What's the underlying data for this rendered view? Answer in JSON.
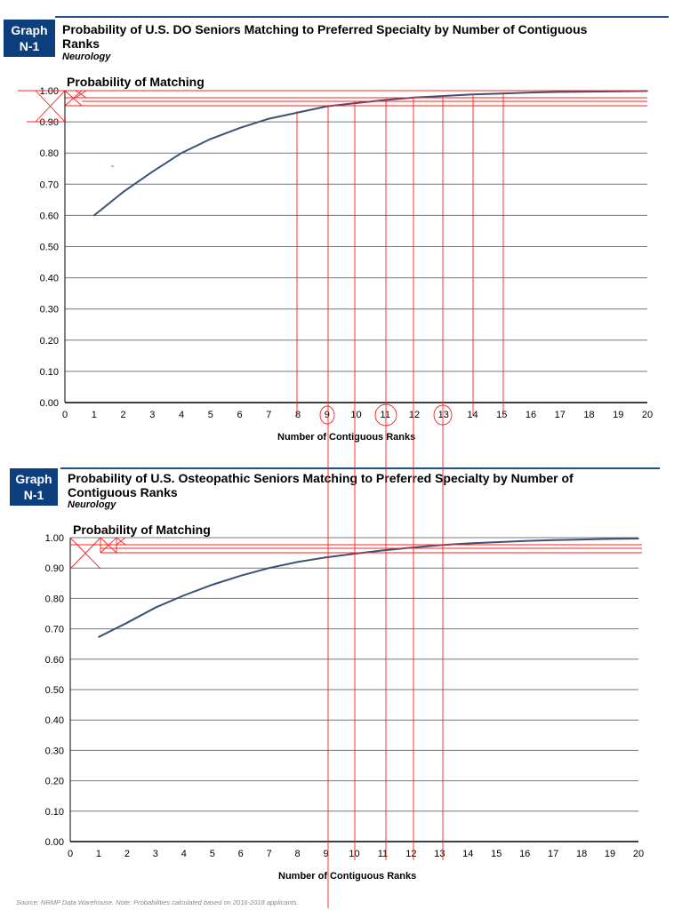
{
  "charts": [
    {
      "badge": [
        "Graph",
        "N-1"
      ],
      "title": "Probability of U.S. DO Seniors Matching to Preferred Specialty by Number of Contiguous Ranks",
      "subtitle": "Neurology",
      "ylabel": "Probability of Matching",
      "xlabel": "Number of Contiguous Ranks"
    },
    {
      "badge": [
        "Graph",
        "N-1"
      ],
      "title": "Probability of U.S. Osteopathic Seniors Matching to Preferred Specialty by Number of Contiguous Ranks",
      "subtitle": "Neurology",
      "ylabel": "Probability of Matching",
      "xlabel": "Number of Contiguous Ranks"
    }
  ],
  "source_note": "Source: NRMP Data Warehouse. Note: Probabilities calculated based on 2016-2018 applicants.",
  "colors": {
    "line": "#3a5274",
    "badge": "#0d3f7e",
    "annotation": "#ff0000"
  },
  "chart_data": [
    {
      "type": "line",
      "title": "Probability of U.S. DO Seniors Matching to Preferred Specialty by Number of Contiguous Ranks",
      "subtitle": "Neurology",
      "xlabel": "Number of Contiguous Ranks",
      "ylabel": "Probability of Matching",
      "xlim": [
        0,
        20
      ],
      "ylim": [
        0,
        1
      ],
      "xticks": [
        "0",
        "1",
        "2",
        "3",
        "4",
        "5",
        "6",
        "7",
        "8",
        "9",
        "10",
        "11",
        "12",
        "13",
        "14",
        "15",
        "16",
        "17",
        "18",
        "19",
        "20"
      ],
      "yticks": [
        "0.00",
        "0.10",
        "0.20",
        "0.30",
        "0.40",
        "0.50",
        "0.60",
        "0.70",
        "0.80",
        "0.90",
        "1.00"
      ],
      "grid": true,
      "x": [
        1,
        2,
        3,
        4,
        5,
        6,
        7,
        8,
        9,
        10,
        11,
        12,
        13,
        14,
        15,
        16,
        17,
        18,
        19,
        20
      ],
      "series": [
        {
          "name": "Probability of Matching",
          "values": [
            0.6,
            0.675,
            0.74,
            0.8,
            0.845,
            0.88,
            0.91,
            0.93,
            0.95,
            0.96,
            0.97,
            0.978,
            0.983,
            0.988,
            0.991,
            0.994,
            0.996,
            0.997,
            0.998,
            0.999
          ]
        }
      ]
    },
    {
      "type": "line",
      "title": "Probability of U.S. Osteopathic Seniors Matching to Preferred Specialty by Number of Contiguous Ranks",
      "subtitle": "Neurology",
      "xlabel": "Number of Contiguous Ranks",
      "ylabel": "Probability of Matching",
      "xlim": [
        0,
        20
      ],
      "ylim": [
        0,
        1
      ],
      "xticks": [
        "0",
        "1",
        "2",
        "3",
        "4",
        "5",
        "6",
        "7",
        "8",
        "9",
        "10",
        "11",
        "12",
        "13",
        "14",
        "15",
        "16",
        "17",
        "18",
        "19",
        "20"
      ],
      "yticks": [
        "0.00",
        "0.10",
        "0.20",
        "0.30",
        "0.40",
        "0.50",
        "0.60",
        "0.70",
        "0.80",
        "0.90",
        "1.00"
      ],
      "grid": true,
      "x": [
        1,
        2,
        3,
        4,
        5,
        6,
        7,
        8,
        9,
        10,
        11,
        12,
        13,
        14,
        15,
        16,
        17,
        18,
        19,
        20
      ],
      "series": [
        {
          "name": "Probability of Matching",
          "values": [
            0.673,
            0.72,
            0.77,
            0.81,
            0.845,
            0.875,
            0.9,
            0.92,
            0.935,
            0.947,
            0.958,
            0.967,
            0.975,
            0.981,
            0.985,
            0.989,
            0.992,
            0.994,
            0.996,
            0.997
          ]
        }
      ]
    }
  ]
}
